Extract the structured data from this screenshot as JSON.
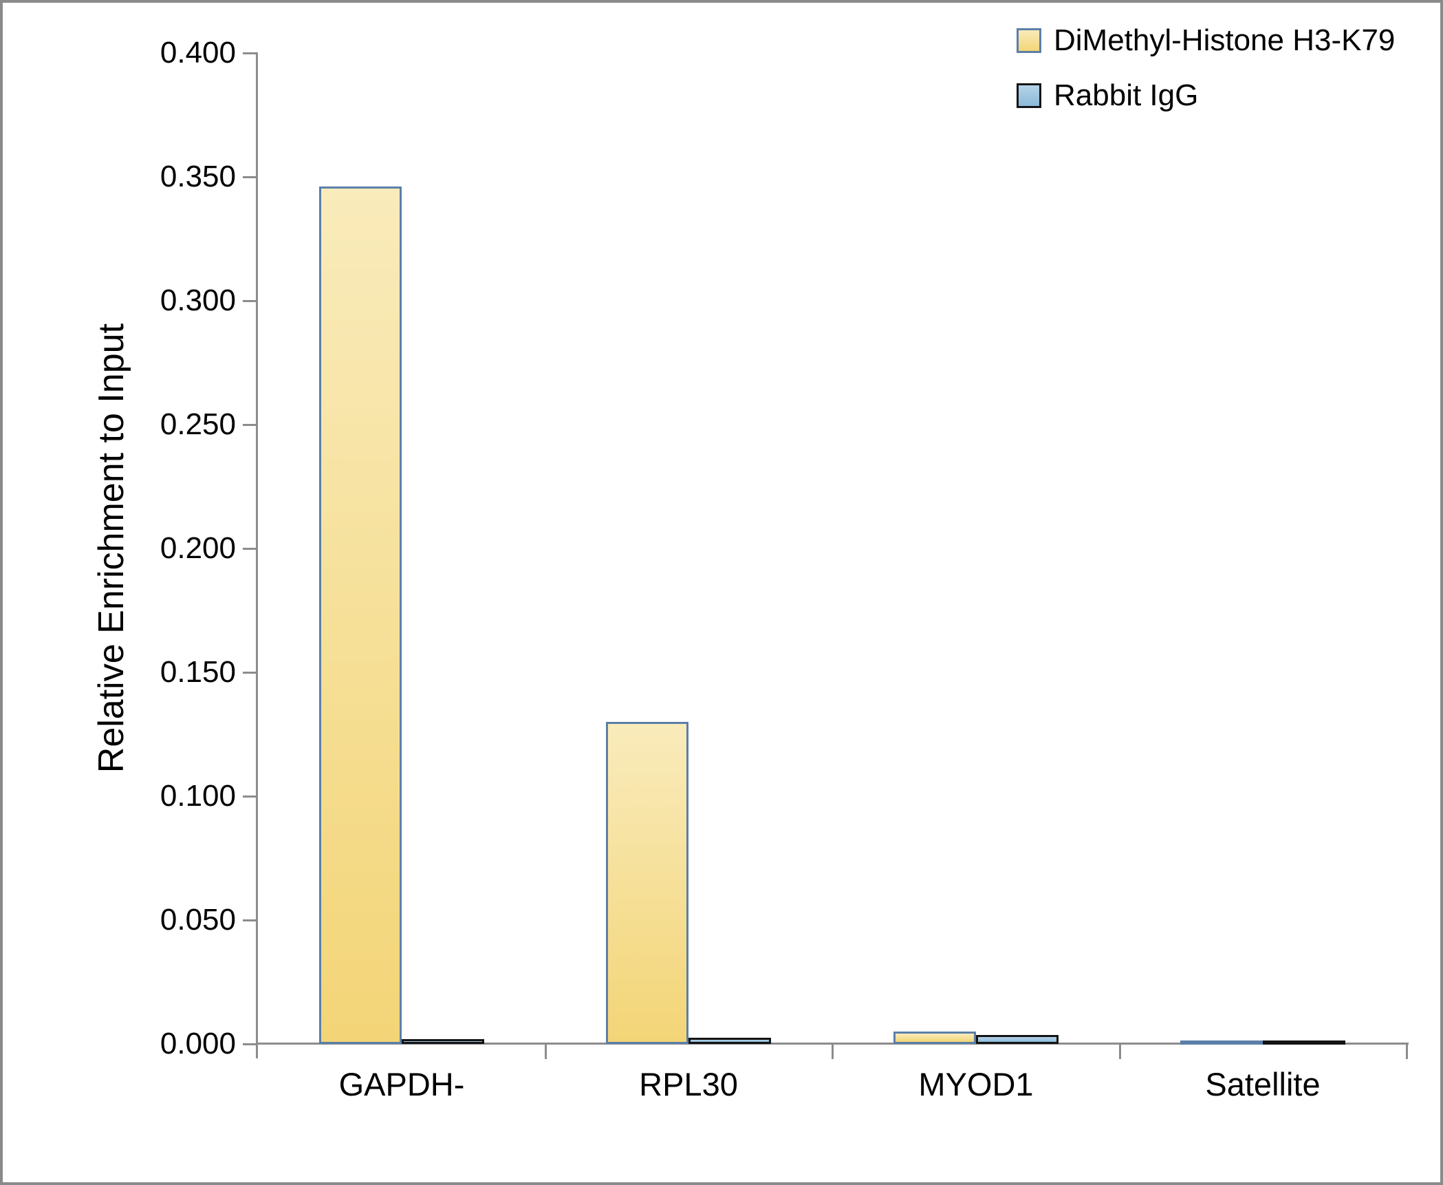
{
  "chart_data": {
    "type": "bar",
    "title": "",
    "categories": [
      "GAPDH-",
      "RPL30",
      "MYOD1",
      "Satellite"
    ],
    "series": [
      {
        "name": "DiMethyl-Histone H3-K79",
        "values": [
          0.346,
          0.13,
          0.005,
          0.0015
        ],
        "fill_top": "#F9EBBB",
        "fill_bottom": "#F3D577",
        "border_color": "#5B7FA8"
      },
      {
        "name": "Rabbit IgG",
        "values": [
          0.002,
          0.0025,
          0.0035,
          0.0015
        ],
        "fill_top": "#B4D3E8",
        "fill_bottom": "#8CBAD9",
        "border_color": "#141414"
      }
    ],
    "xlabel": "",
    "ylabel": "Relative Enrichment to Input",
    "ylim": [
      0.0,
      0.4
    ],
    "ytick_step": 0.05,
    "ytick_labels": [
      "0.000",
      "0.050",
      "0.100",
      "0.150",
      "0.200",
      "0.250",
      "0.300",
      "0.350",
      "0.400"
    ],
    "grid": false,
    "legend_position": "top-right",
    "axis_color": "#8c8c8c",
    "text_color": "#000000"
  }
}
